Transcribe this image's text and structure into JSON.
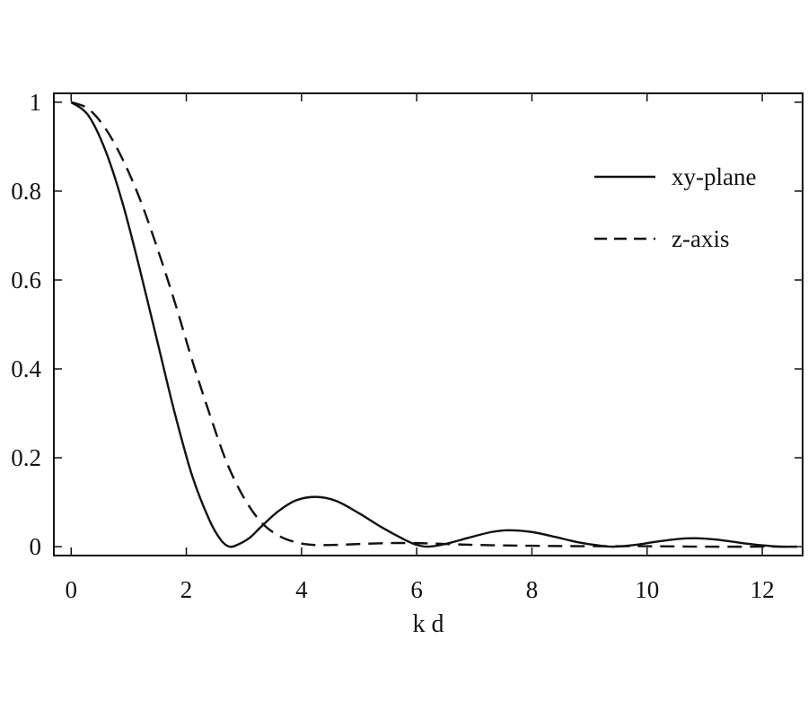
{
  "chart_data": {
    "type": "line",
    "title": "",
    "xlabel": "k d",
    "ylabel": "",
    "xlim": [
      -0.3,
      12.7
    ],
    "ylim": [
      -0.02,
      1.02
    ],
    "x_ticks": [
      0,
      2,
      4,
      6,
      8,
      10,
      12
    ],
    "x_tick_labels": [
      "0",
      "2",
      "4",
      "6",
      "8",
      "10",
      "12"
    ],
    "y_ticks": [
      0,
      0.2,
      0.4,
      0.6,
      0.8,
      1
    ],
    "y_tick_labels": [
      "0",
      "0.2",
      "0.4",
      "0.6",
      "0.8",
      "1"
    ],
    "grid": false,
    "legend_position": "top-right",
    "series": [
      {
        "name": "xy-plane",
        "style": "solid",
        "color": "#111111",
        "points": [
          [
            0,
            1.0
          ],
          [
            0.3,
            0.97
          ],
          [
            0.6,
            0.89
          ],
          [
            0.9,
            0.77
          ],
          [
            1.2,
            0.62
          ],
          [
            1.5,
            0.46
          ],
          [
            1.8,
            0.3
          ],
          [
            2.1,
            0.16
          ],
          [
            2.4,
            0.06
          ],
          [
            2.6,
            0.015
          ],
          [
            2.75,
            0.0
          ],
          [
            2.9,
            0.005
          ],
          [
            3.1,
            0.02
          ],
          [
            3.3,
            0.045
          ],
          [
            3.6,
            0.08
          ],
          [
            3.9,
            0.104
          ],
          [
            4.25,
            0.112
          ],
          [
            4.6,
            0.103
          ],
          [
            5.0,
            0.075
          ],
          [
            5.4,
            0.043
          ],
          [
            5.8,
            0.015
          ],
          [
            6.0,
            0.004
          ],
          [
            6.2,
            0.0
          ],
          [
            6.5,
            0.006
          ],
          [
            6.9,
            0.02
          ],
          [
            7.3,
            0.033
          ],
          [
            7.6,
            0.037
          ],
          [
            8.0,
            0.033
          ],
          [
            8.4,
            0.022
          ],
          [
            8.8,
            0.01
          ],
          [
            9.2,
            0.002
          ],
          [
            9.45,
            0.0
          ],
          [
            9.8,
            0.004
          ],
          [
            10.2,
            0.012
          ],
          [
            10.6,
            0.018
          ],
          [
            10.85,
            0.019
          ],
          [
            11.2,
            0.016
          ],
          [
            11.6,
            0.009
          ],
          [
            12.0,
            0.003
          ],
          [
            12.3,
            0.0
          ],
          [
            12.6,
            0.0
          ]
        ]
      },
      {
        "name": "z-axis",
        "style": "dashed",
        "color": "#111111",
        "points": [
          [
            0,
            1.0
          ],
          [
            0.3,
            0.985
          ],
          [
            0.6,
            0.94
          ],
          [
            0.9,
            0.87
          ],
          [
            1.2,
            0.78
          ],
          [
            1.5,
            0.67
          ],
          [
            1.8,
            0.55
          ],
          [
            2.1,
            0.42
          ],
          [
            2.4,
            0.3
          ],
          [
            2.7,
            0.19
          ],
          [
            3.0,
            0.11
          ],
          [
            3.3,
            0.055
          ],
          [
            3.6,
            0.025
          ],
          [
            3.9,
            0.01
          ],
          [
            4.2,
            0.004
          ],
          [
            4.6,
            0.004
          ],
          [
            5.0,
            0.006
          ],
          [
            5.5,
            0.008
          ],
          [
            6.0,
            0.008
          ],
          [
            6.5,
            0.006
          ],
          [
            7.0,
            0.004
          ],
          [
            8.0,
            0.002
          ],
          [
            9.0,
            0.001
          ],
          [
            10.0,
            0.001
          ],
          [
            11.0,
            0.0
          ],
          [
            12.0,
            0.0
          ],
          [
            12.6,
            0.0
          ]
        ]
      }
    ]
  }
}
